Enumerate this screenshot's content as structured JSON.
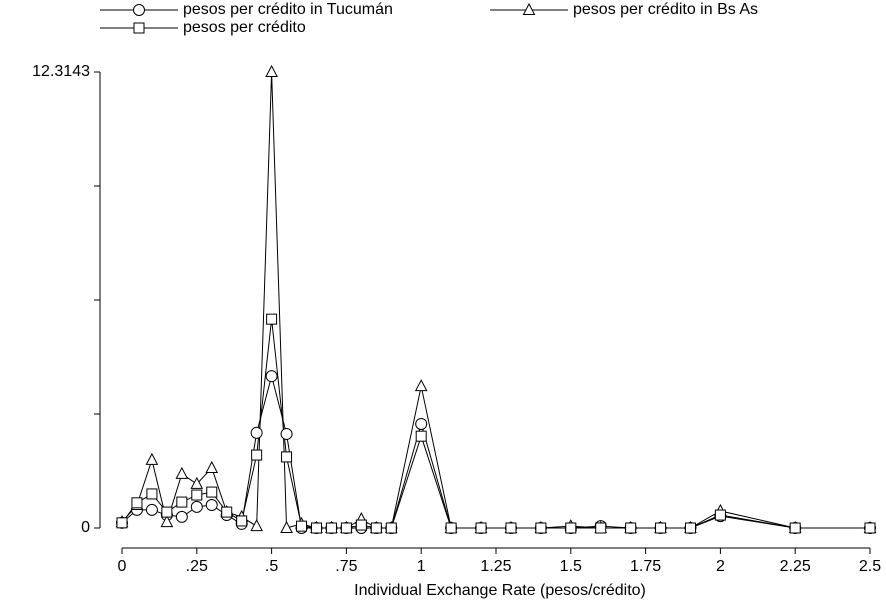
{
  "chart_data": {
    "type": "line",
    "xlabel": "Individual Exchange Rate (pesos/crédito)",
    "x": [
      0,
      0.05,
      0.1,
      0.15,
      0.2,
      0.25,
      0.3,
      0.35,
      0.4,
      0.45,
      0.5,
      0.55,
      0.6,
      0.65,
      0.7,
      0.75,
      0.8,
      0.85,
      0.9,
      1,
      1.1,
      1.2,
      1.3,
      1.4,
      1.5,
      1.6,
      1.7,
      1.8,
      1.9,
      2,
      2.25,
      2.5
    ],
    "series": [
      {
        "name": "pesos per crédito in Tucumán",
        "color": "#000000",
        "marker": "circle",
        "values": [
          0.14,
          0.49,
          0.49,
          0.35,
          0.3,
          0.57,
          0.62,
          0.35,
          0.11,
          2.57,
          4.1,
          2.54,
          0,
          0,
          0,
          0,
          0,
          0,
          0,
          2.81,
          0,
          0,
          0,
          0,
          0,
          0.05,
          0,
          0,
          0,
          0.32,
          0,
          0
        ]
      },
      {
        "name": "pesos per crédito in Bs As",
        "color": "#000000",
        "marker": "triangle",
        "values": [
          0.16,
          0.62,
          1.84,
          0.16,
          1.46,
          1.19,
          1.62,
          0.43,
          0.3,
          0.05,
          12.3143,
          0,
          0.11,
          0,
          0,
          0,
          0.24,
          0,
          0,
          3.83,
          0,
          0,
          0,
          0,
          0.05,
          0,
          0,
          0,
          0,
          0.46,
          0,
          0
        ]
      },
      {
        "name": "pesos per crédito",
        "color": "#000000",
        "marker": "square",
        "values": [
          0.14,
          0.68,
          0.92,
          0.43,
          0.7,
          0.89,
          0.97,
          0.43,
          0.19,
          1.97,
          5.64,
          1.92,
          0.05,
          0,
          0,
          0,
          0.08,
          0,
          0,
          2.48,
          0,
          0,
          0,
          0,
          0,
          0,
          0,
          0,
          0,
          0.35,
          0,
          0
        ]
      }
    ],
    "xlim": [
      0,
      2.5
    ],
    "xticks": [
      0,
      {
        "value": 0.25,
        "label": ".25"
      },
      {
        "value": 0.5,
        "label": ".5"
      },
      {
        "value": 0.75,
        "label": ".75"
      },
      1,
      1.25,
      1.5,
      1.75,
      2,
      2.25,
      2.5
    ],
    "ylim": [
      0,
      12.3143
    ],
    "yticks": [
      0,
      12.3143
    ],
    "yminorticks": [
      3.0786,
      6.1572,
      9.2357
    ],
    "grid": false,
    "legend": "top"
  }
}
